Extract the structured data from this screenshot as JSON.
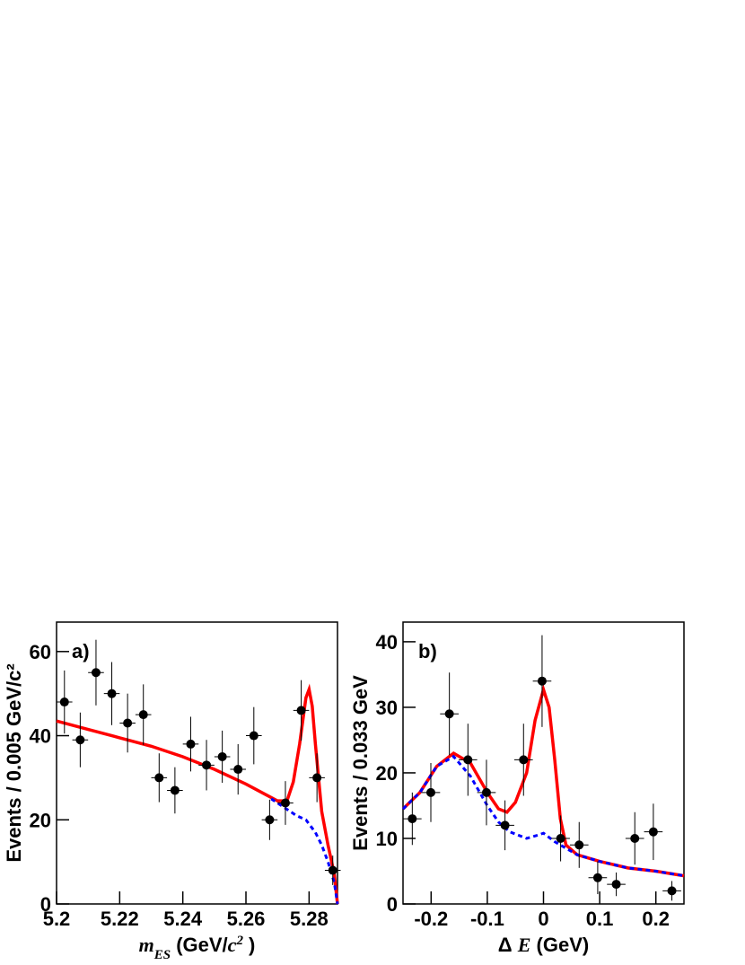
{
  "chart_data": [
    {
      "type": "scatter",
      "panel_label": "a)",
      "ylabel": "Events / 0.005 GeV/c²",
      "xlabel": [
        {
          "text": "m",
          "style": "italic"
        },
        {
          "text": "ES",
          "style": "sub"
        },
        {
          "text": " (GeV/",
          "style": "normal"
        },
        {
          "text": "c",
          "style": "italic"
        },
        {
          "text": "2",
          "style": "sup"
        },
        {
          "text": " )",
          "style": "normal"
        }
      ],
      "xlim": [
        5.2,
        5.289
      ],
      "ylim": [
        0,
        67
      ],
      "xticks": [
        5.2,
        5.22,
        5.24,
        5.26,
        5.28
      ],
      "yticks": [
        0,
        20,
        40,
        60
      ],
      "points": {
        "color": "#000000",
        "xerr": 0.0025,
        "x": [
          5.2025,
          5.2075,
          5.2125,
          5.2175,
          5.2225,
          5.2275,
          5.2325,
          5.2375,
          5.2425,
          5.2475,
          5.2525,
          5.2575,
          5.2625,
          5.2675,
          5.2725,
          5.2775,
          5.2825,
          5.2875
        ],
        "values": [
          48,
          39,
          55,
          50,
          43,
          45,
          30,
          27,
          38,
          33,
          35,
          32,
          40,
          20,
          24,
          46,
          30,
          8
        ],
        "errors": [
          7.5,
          6.5,
          7.8,
          7.5,
          7,
          7.2,
          5.8,
          5.5,
          6.5,
          6,
          6.2,
          6,
          6.8,
          4.8,
          5.2,
          7.2,
          5.8,
          3.5
        ]
      },
      "curves": [
        {
          "color": "#ff0000",
          "dashed": false,
          "x": [
            5.2,
            5.21,
            5.22,
            5.23,
            5.24,
            5.25,
            5.26,
            5.265,
            5.27,
            5.273,
            5.275,
            5.277,
            5.279,
            5.28,
            5.281,
            5.282,
            5.284,
            5.286,
            5.288,
            5.289
          ],
          "values": [
            43.5,
            41.5,
            39.5,
            37.5,
            35,
            32,
            28.5,
            26.5,
            24.5,
            24.5,
            29,
            38,
            49,
            51,
            47,
            38,
            22,
            14,
            7,
            0
          ]
        },
        {
          "color": "#0000ff",
          "dashed": true,
          "x": [
            5.268,
            5.272,
            5.276,
            5.279,
            5.282,
            5.284,
            5.286,
            5.288,
            5.289
          ],
          "values": [
            25,
            23,
            21,
            20,
            17,
            14,
            10,
            5,
            0
          ]
        }
      ]
    },
    {
      "type": "scatter",
      "panel_label": "b)",
      "ylabel": "Events / 0.033 GeV",
      "xlabel": [
        {
          "text": "Δ ",
          "style": "normal"
        },
        {
          "text": "E",
          "style": "italic"
        },
        {
          "text": " (GeV)",
          "style": "normal"
        }
      ],
      "xlim": [
        -0.25,
        0.25
      ],
      "ylim": [
        0,
        43
      ],
      "xticks": [
        -0.2,
        -0.1,
        0,
        0.1,
        0.2
      ],
      "yticks": [
        0,
        10,
        20,
        30,
        40
      ],
      "points": {
        "color": "#000000",
        "xerr": 0.0165,
        "x": [
          -0.2335,
          -0.2005,
          -0.1675,
          -0.1345,
          -0.1015,
          -0.0685,
          -0.0355,
          -0.0025,
          0.0305,
          0.0635,
          0.0965,
          0.1295,
          0.1625,
          0.1955,
          0.2285
        ],
        "values": [
          13,
          17,
          29,
          22,
          17,
          12,
          22,
          34,
          10,
          9,
          4,
          3,
          10,
          11,
          2
        ],
        "errors": [
          4,
          4.5,
          6.3,
          5.5,
          5,
          3.8,
          5.5,
          7,
          3.5,
          3.5,
          2.5,
          1.8,
          4,
          4.3,
          1.5
        ]
      },
      "curves": [
        {
          "color": "#ff0000",
          "dashed": false,
          "x": [
            -0.25,
            -0.22,
            -0.19,
            -0.16,
            -0.13,
            -0.1,
            -0.08,
            -0.065,
            -0.05,
            -0.03,
            -0.015,
            0,
            0.01,
            0.02,
            0.03,
            0.04,
            0.06,
            0.1,
            0.15,
            0.2,
            0.25
          ],
          "values": [
            14.5,
            17,
            21,
            23,
            21.5,
            17,
            14.5,
            14,
            15.5,
            20,
            28,
            32.7,
            30,
            22,
            13,
            9,
            7.5,
            6.5,
            5.5,
            5,
            4.3
          ]
        },
        {
          "color": "#0000ff",
          "dashed": true,
          "x": [
            -0.25,
            -0.22,
            -0.19,
            -0.16,
            -0.13,
            -0.1,
            -0.08,
            -0.06,
            -0.03,
            -0.01,
            0,
            0.02,
            0.04,
            0.06,
            0.1,
            0.15,
            0.2,
            0.25
          ],
          "values": [
            14.5,
            17,
            21,
            22.5,
            19.5,
            15,
            12.5,
            11,
            10,
            10.5,
            10.8,
            9.5,
            8.5,
            7.5,
            6.5,
            5.5,
            5,
            4.3
          ]
        }
      ]
    }
  ]
}
